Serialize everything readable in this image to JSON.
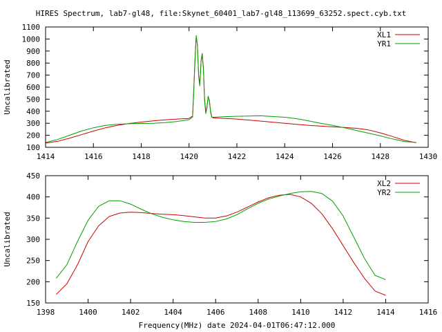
{
  "title": "HIRES Spectrum, lab7-gl48, file:Skynet_60401_lab7-gl48_113699_63252.spect.cyb.txt",
  "colors": {
    "red": "#cc0000",
    "green": "#00a000",
    "axes": "#000000"
  },
  "chart_data": [
    {
      "type": "line",
      "xlabel": "",
      "ylabel": "Uncalibrated",
      "xlim": [
        1414,
        1430
      ],
      "ylim": [
        100,
        1100
      ],
      "xticks": [
        "1414",
        "1416",
        "1418",
        "1420",
        "1422",
        "1424",
        "1426",
        "1428",
        "1430"
      ],
      "yticks": [
        "100",
        "200",
        "300",
        "400",
        "500",
        "600",
        "700",
        "800",
        "900",
        "1000",
        "1100"
      ],
      "legend": "top-right",
      "series": [
        {
          "name": "XL1",
          "color": "#cc0000",
          "points": [
            [
              1414.0,
              135
            ],
            [
              1414.5,
              150
            ],
            [
              1415.0,
              175
            ],
            [
              1415.5,
              205
            ],
            [
              1416.0,
              235
            ],
            [
              1416.5,
              262
            ],
            [
              1417.0,
              282
            ],
            [
              1417.5,
              298
            ],
            [
              1418.0,
              310
            ],
            [
              1418.5,
              320
            ],
            [
              1419.0,
              328
            ],
            [
              1419.5,
              335
            ],
            [
              1420.0,
              340
            ],
            [
              1420.15,
              360
            ],
            [
              1420.2,
              600
            ],
            [
              1420.25,
              850
            ],
            [
              1420.3,
              1020
            ],
            [
              1420.35,
              950
            ],
            [
              1420.4,
              700
            ],
            [
              1420.45,
              620
            ],
            [
              1420.5,
              820
            ],
            [
              1420.55,
              880
            ],
            [
              1420.6,
              760
            ],
            [
              1420.65,
              500
            ],
            [
              1420.7,
              390
            ],
            [
              1420.75,
              440
            ],
            [
              1420.8,
              520
            ],
            [
              1420.85,
              490
            ],
            [
              1420.9,
              400
            ],
            [
              1420.95,
              355
            ],
            [
              1421.0,
              345
            ],
            [
              1421.5,
              340
            ],
            [
              1422.0,
              335
            ],
            [
              1423.0,
              318
            ],
            [
              1424.0,
              300
            ],
            [
              1425.0,
              282
            ],
            [
              1426.0,
              270
            ],
            [
              1426.5,
              265
            ],
            [
              1427.0,
              258
            ],
            [
              1427.5,
              245
            ],
            [
              1428.0,
              220
            ],
            [
              1428.5,
              190
            ],
            [
              1429.0,
              158
            ],
            [
              1429.5,
              138
            ]
          ]
        },
        {
          "name": "YR1",
          "color": "#00a000",
          "points": [
            [
              1414.0,
              140
            ],
            [
              1414.5,
              165
            ],
            [
              1415.0,
              200
            ],
            [
              1415.5,
              235
            ],
            [
              1416.0,
              262
            ],
            [
              1416.5,
              282
            ],
            [
              1417.0,
              292
            ],
            [
              1417.5,
              296
            ],
            [
              1418.0,
              298
            ],
            [
              1418.5,
              300
            ],
            [
              1419.0,
              305
            ],
            [
              1419.5,
              315
            ],
            [
              1420.0,
              330
            ],
            [
              1420.15,
              350
            ],
            [
              1420.2,
              580
            ],
            [
              1420.25,
              830
            ],
            [
              1420.3,
              1030
            ],
            [
              1420.35,
              940
            ],
            [
              1420.4,
              690
            ],
            [
              1420.45,
              610
            ],
            [
              1420.5,
              810
            ],
            [
              1420.55,
              870
            ],
            [
              1420.6,
              750
            ],
            [
              1420.65,
              480
            ],
            [
              1420.7,
              380
            ],
            [
              1420.75,
              430
            ],
            [
              1420.8,
              525
            ],
            [
              1420.85,
              480
            ],
            [
              1420.9,
              390
            ],
            [
              1420.95,
              350
            ],
            [
              1421.0,
              350
            ],
            [
              1421.5,
              355
            ],
            [
              1422.0,
              358
            ],
            [
              1423.0,
              362
            ],
            [
              1424.0,
              350
            ],
            [
              1424.5,
              338
            ],
            [
              1425.0,
              320
            ],
            [
              1425.5,
              300
            ],
            [
              1426.0,
              282
            ],
            [
              1426.5,
              262
            ],
            [
              1427.0,
              240
            ],
            [
              1427.5,
              218
            ],
            [
              1428.0,
              195
            ],
            [
              1428.5,
              170
            ],
            [
              1429.0,
              148
            ],
            [
              1429.5,
              140
            ]
          ]
        }
      ]
    },
    {
      "type": "line",
      "xlabel": "Frequency(MHz) date 2024-04-01T06:47:12.000",
      "ylabel": "Uncalibrated",
      "xlim": [
        1398,
        1416
      ],
      "ylim": [
        150,
        450
      ],
      "xticks": [
        "1398",
        "1400",
        "1402",
        "1404",
        "1406",
        "1408",
        "1410",
        "1412",
        "1414",
        "1416"
      ],
      "yticks": [
        "150",
        "200",
        "250",
        "300",
        "350",
        "400",
        "450"
      ],
      "legend": "top-right",
      "series": [
        {
          "name": "XL2",
          "color": "#cc0000",
          "points": [
            [
              1398.5,
              170
            ],
            [
              1399.0,
              195
            ],
            [
              1399.5,
              240
            ],
            [
              1400.0,
              295
            ],
            [
              1400.5,
              332
            ],
            [
              1401.0,
              354
            ],
            [
              1401.5,
              362
            ],
            [
              1402.0,
              364
            ],
            [
              1402.5,
              363
            ],
            [
              1403.0,
              361
            ],
            [
              1403.5,
              359
            ],
            [
              1404.0,
              358
            ],
            [
              1404.5,
              356
            ],
            [
              1405.0,
              353
            ],
            [
              1405.5,
              350
            ],
            [
              1406.0,
              350
            ],
            [
              1406.5,
              355
            ],
            [
              1407.0,
              364
            ],
            [
              1407.5,
              376
            ],
            [
              1408.0,
              388
            ],
            [
              1408.5,
              398
            ],
            [
              1409.0,
              404
            ],
            [
              1409.5,
              406
            ],
            [
              1410.0,
              400
            ],
            [
              1410.5,
              385
            ],
            [
              1411.0,
              360
            ],
            [
              1411.5,
              325
            ],
            [
              1412.0,
              285
            ],
            [
              1412.5,
              245
            ],
            [
              1413.0,
              208
            ],
            [
              1413.5,
              178
            ],
            [
              1414.0,
              168
            ]
          ]
        },
        {
          "name": "YR2",
          "color": "#00a000",
          "points": [
            [
              1398.5,
              208
            ],
            [
              1399.0,
              240
            ],
            [
              1399.5,
              295
            ],
            [
              1400.0,
              345
            ],
            [
              1400.5,
              378
            ],
            [
              1401.0,
              391
            ],
            [
              1401.5,
              391
            ],
            [
              1402.0,
              383
            ],
            [
              1402.5,
              371
            ],
            [
              1403.0,
              360
            ],
            [
              1403.5,
              352
            ],
            [
              1404.0,
              346
            ],
            [
              1404.5,
              342
            ],
            [
              1405.0,
              340
            ],
            [
              1405.5,
              340
            ],
            [
              1406.0,
              342
            ],
            [
              1406.5,
              348
            ],
            [
              1407.0,
              358
            ],
            [
              1407.5,
              372
            ],
            [
              1408.0,
              385
            ],
            [
              1408.5,
              395
            ],
            [
              1409.0,
              402
            ],
            [
              1409.5,
              408
            ],
            [
              1410.0,
              412
            ],
            [
              1410.5,
              413
            ],
            [
              1411.0,
              408
            ],
            [
              1411.5,
              390
            ],
            [
              1412.0,
              355
            ],
            [
              1412.5,
              305
            ],
            [
              1413.0,
              255
            ],
            [
              1413.5,
              215
            ],
            [
              1414.0,
              205
            ]
          ]
        }
      ]
    }
  ]
}
